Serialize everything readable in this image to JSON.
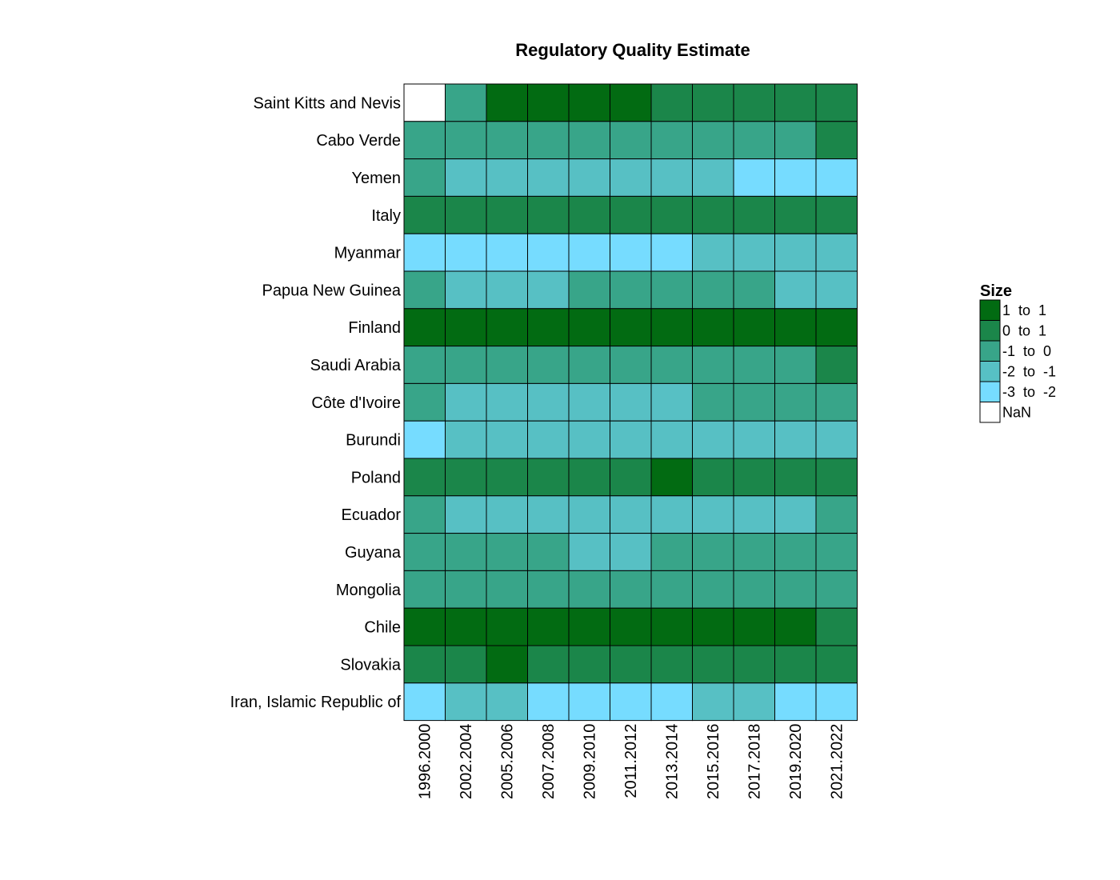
{
  "chart_data": {
    "type": "heatmap",
    "title": "Regulatory Quality Estimate",
    "x": [
      "1996.2000",
      "2002.2004",
      "2005.2006",
      "2007.2008",
      "2009.2010",
      "2011.2012",
      "2013.2014",
      "2015.2016",
      "2017.2018",
      "2019.2020",
      "2021.2022"
    ],
    "y": [
      "Saint Kitts and Nevis",
      "Cabo Verde",
      "Yemen",
      "Italy",
      "Myanmar",
      "Papua New Guinea",
      "Finland",
      "Saudi Arabia",
      "Côte d'Ivoire",
      "Burundi",
      "Poland",
      "Ecuador",
      "Guyana",
      "Mongolia",
      "Chile",
      "Slovakia",
      "Iran, Islamic Republic of"
    ],
    "matrix": [
      [
        "NaN",
        "-1 to 0",
        "1 to 1",
        "1 to 1",
        "1 to 1",
        "1 to 1",
        "0 to 1",
        "0 to 1",
        "0 to 1",
        "0 to 1",
        "0 to 1"
      ],
      [
        "-1 to 0",
        "-1 to 0",
        "-1 to 0",
        "-1 to 0",
        "-1 to 0",
        "-1 to 0",
        "-1 to 0",
        "-1 to 0",
        "-1 to 0",
        "-1 to 0",
        "0 to 1"
      ],
      [
        "-1 to 0",
        "-2 to -1",
        "-2 to -1",
        "-2 to -1",
        "-2 to -1",
        "-2 to -1",
        "-2 to -1",
        "-2 to -1",
        "-3 to -2",
        "-3 to -2",
        "-3 to -2"
      ],
      [
        "0 to 1",
        "0 to 1",
        "0 to 1",
        "0 to 1",
        "0 to 1",
        "0 to 1",
        "0 to 1",
        "0 to 1",
        "0 to 1",
        "0 to 1",
        "0 to 1"
      ],
      [
        "-3 to -2",
        "-3 to -2",
        "-3 to -2",
        "-3 to -2",
        "-3 to -2",
        "-3 to -2",
        "-3 to -2",
        "-2 to -1",
        "-2 to -1",
        "-2 to -1",
        "-2 to -1"
      ],
      [
        "-1 to 0",
        "-2 to -1",
        "-2 to -1",
        "-2 to -1",
        "-1 to 0",
        "-1 to 0",
        "-1 to 0",
        "-1 to 0",
        "-1 to 0",
        "-2 to -1",
        "-2 to -1"
      ],
      [
        "1 to 1",
        "1 to 1",
        "1 to 1",
        "1 to 1",
        "1 to 1",
        "1 to 1",
        "1 to 1",
        "1 to 1",
        "1 to 1",
        "1 to 1",
        "1 to 1"
      ],
      [
        "-1 to 0",
        "-1 to 0",
        "-1 to 0",
        "-1 to 0",
        "-1 to 0",
        "-1 to 0",
        "-1 to 0",
        "-1 to 0",
        "-1 to 0",
        "-1 to 0",
        "0 to 1"
      ],
      [
        "-1 to 0",
        "-2 to -1",
        "-2 to -1",
        "-2 to -1",
        "-2 to -1",
        "-2 to -1",
        "-2 to -1",
        "-1 to 0",
        "-1 to 0",
        "-1 to 0",
        "-1 to 0"
      ],
      [
        "-3 to -2",
        "-2 to -1",
        "-2 to -1",
        "-2 to -1",
        "-2 to -1",
        "-2 to -1",
        "-2 to -1",
        "-2 to -1",
        "-2 to -1",
        "-2 to -1",
        "-2 to -1"
      ],
      [
        "0 to 1",
        "0 to 1",
        "0 to 1",
        "0 to 1",
        "0 to 1",
        "0 to 1",
        "1 to 1",
        "0 to 1",
        "0 to 1",
        "0 to 1",
        "0 to 1"
      ],
      [
        "-1 to 0",
        "-2 to -1",
        "-2 to -1",
        "-2 to -1",
        "-2 to -1",
        "-2 to -1",
        "-2 to -1",
        "-2 to -1",
        "-2 to -1",
        "-2 to -1",
        "-1 to 0"
      ],
      [
        "-1 to 0",
        "-1 to 0",
        "-1 to 0",
        "-1 to 0",
        "-2 to -1",
        "-2 to -1",
        "-1 to 0",
        "-1 to 0",
        "-1 to 0",
        "-1 to 0",
        "-1 to 0"
      ],
      [
        "-1 to 0",
        "-1 to 0",
        "-1 to 0",
        "-1 to 0",
        "-1 to 0",
        "-1 to 0",
        "-1 to 0",
        "-1 to 0",
        "-1 to 0",
        "-1 to 0",
        "-1 to 0"
      ],
      [
        "1 to 1",
        "1 to 1",
        "1 to 1",
        "1 to 1",
        "1 to 1",
        "1 to 1",
        "1 to 1",
        "1 to 1",
        "1 to 1",
        "1 to 1",
        "0 to 1"
      ],
      [
        "0 to 1",
        "0 to 1",
        "1 to 1",
        "0 to 1",
        "0 to 1",
        "0 to 1",
        "0 to 1",
        "0 to 1",
        "0 to 1",
        "0 to 1",
        "0 to 1"
      ],
      [
        "-3 to -2",
        "-2 to -1",
        "-2 to -1",
        "-3 to -2",
        "-3 to -2",
        "-3 to -2",
        "-3 to -2",
        "-2 to -1",
        "-2 to -1",
        "-3 to -2",
        "-3 to -2"
      ]
    ],
    "legend": {
      "title": "Size",
      "placement": "right",
      "items": [
        {
          "label": "1  to  1",
          "key": "1 to 1",
          "color": "#026b12"
        },
        {
          "label": "0  to  1",
          "key": "0 to 1",
          "color": "#1b864a"
        },
        {
          "label": "-1  to  0",
          "key": "-1 to 0",
          "color": "#38a589"
        },
        {
          "label": "-2  to  -1",
          "key": "-2 to -1",
          "color": "#57c0c4"
        },
        {
          "label": "-3  to  -2",
          "key": "-3 to -2",
          "color": "#76dcff"
        },
        {
          "label": "NaN",
          "key": "NaN",
          "color": "#ffffff"
        }
      ]
    },
    "grid": false
  }
}
